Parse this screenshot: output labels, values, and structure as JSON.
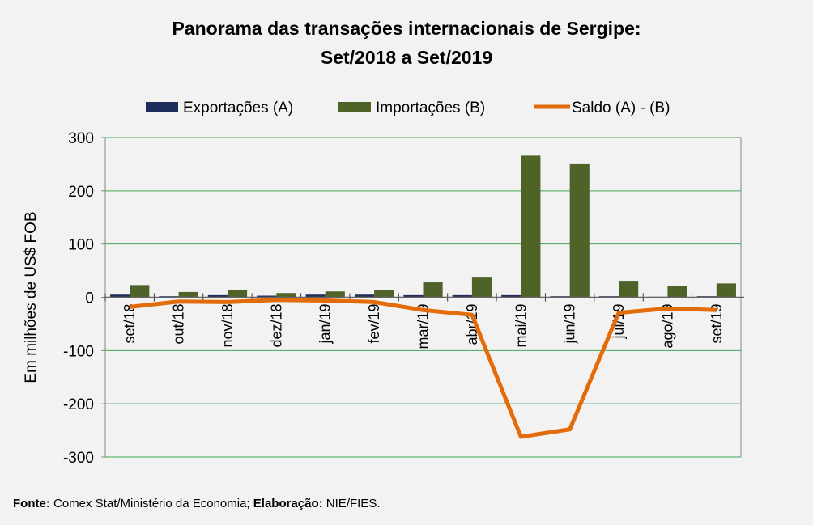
{
  "chart_data": {
    "type": "bar",
    "title": "Panorama das transações internacionais de Sergipe:",
    "subtitle": "Set/2018 a Set/2019",
    "ylabel": "Em milhões de US$ FOB",
    "xlabel": "",
    "ylim": [
      -300,
      300
    ],
    "yticks": [
      300,
      200,
      100,
      0,
      -100,
      -200,
      -300
    ],
    "grid": true,
    "legend_position": "top",
    "categories": [
      "set/18",
      "out/18",
      "nov/18",
      "dez/18",
      "jan/19",
      "fev/19",
      "mar/19",
      "abr/19",
      "mai/19",
      "jun/19",
      "jul/19",
      "ago/19",
      "set/19"
    ],
    "series": [
      {
        "name": "Exportações (A)",
        "type": "bar",
        "color": "#1f2d5c",
        "values": [
          5,
          2,
          4,
          3,
          5,
          5,
          4,
          4,
          4,
          2,
          2,
          1,
          2
        ]
      },
      {
        "name": "Importações (B)",
        "type": "bar",
        "color": "#4f6228",
        "values": [
          23,
          10,
          13,
          8,
          11,
          14,
          28,
          37,
          266,
          250,
          31,
          22,
          26
        ]
      },
      {
        "name": "Saldo (A) - (B)",
        "type": "line",
        "color": "#e36c0a",
        "values": [
          -18,
          -8,
          -9,
          -5,
          -6,
          -9,
          -24,
          -33,
          -262,
          -248,
          -29,
          -21,
          -24
        ]
      }
    ]
  },
  "footer": {
    "source_label": "Fonte:",
    "source": " Comex Stat/Ministério da Economia; ",
    "author_label": "Elaboração:",
    "author": " NIE/FIES."
  }
}
